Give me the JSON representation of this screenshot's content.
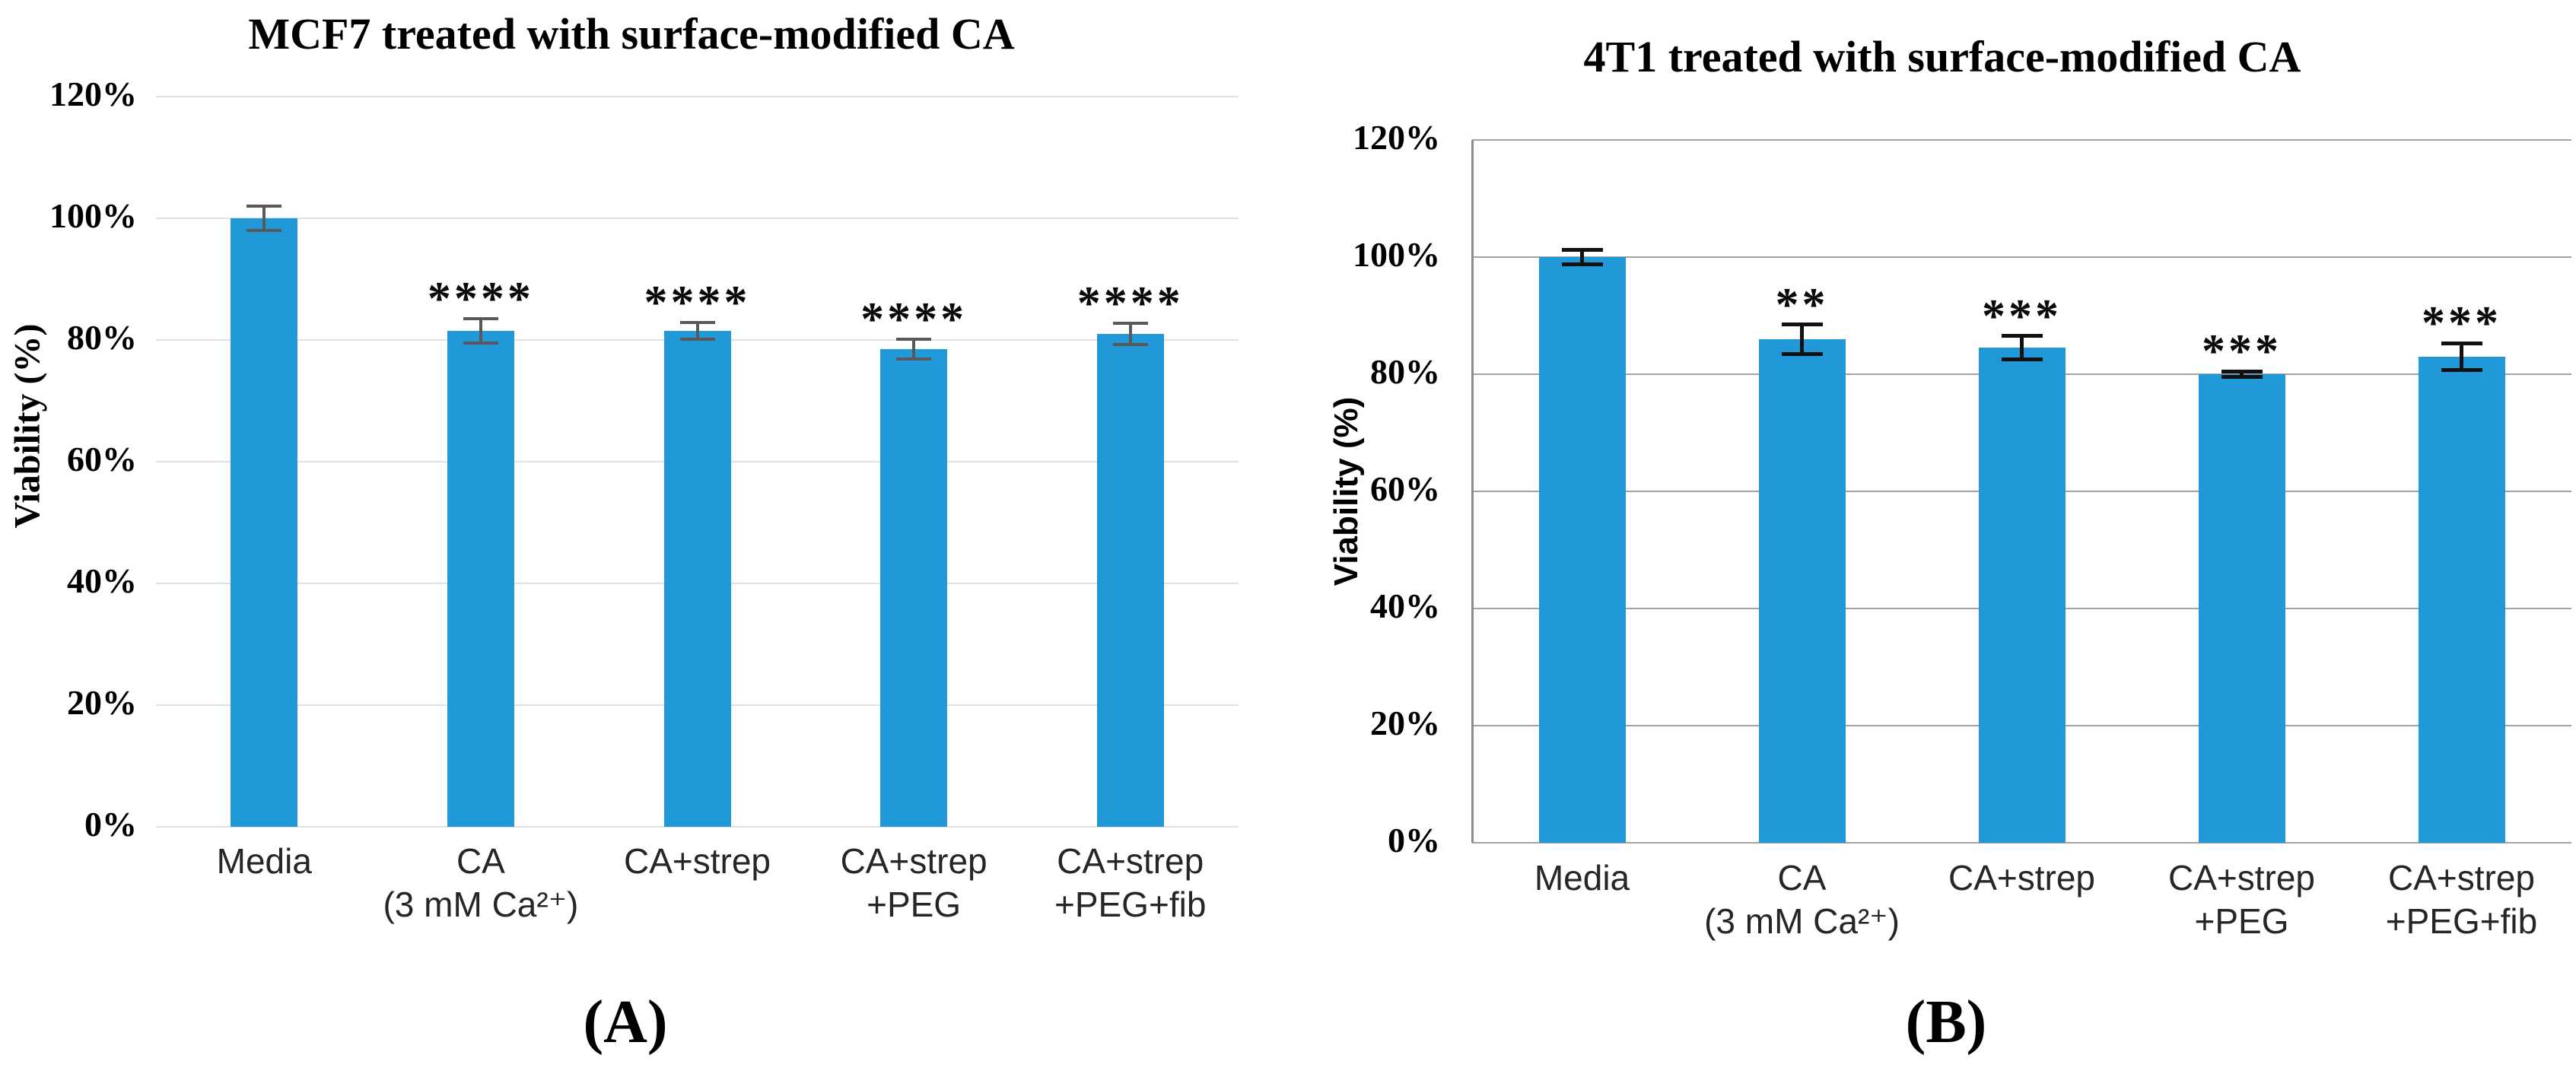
{
  "figure": {
    "background": "#FFFFFF",
    "panels": [
      {
        "caption": "(A)"
      },
      {
        "caption": "(B)"
      }
    ]
  },
  "chart_data": [
    {
      "type": "bar",
      "panel": "A",
      "title": "MCF7 treated with surface-modified CA",
      "xlabel": "",
      "ylabel": "Viability (%)",
      "ylim": [
        0,
        120
      ],
      "ytick_step": 20,
      "ytick_labels": [
        "0%",
        "20%",
        "40%",
        "60%",
        "80%",
        "100%",
        "120%"
      ],
      "grid": true,
      "legend": false,
      "categories": [
        [
          "Media"
        ],
        [
          "CA",
          "(3 mM Ca²⁺)"
        ],
        [
          "CA+strep"
        ],
        [
          "CA+strep",
          "+PEG"
        ],
        [
          "CA+strep",
          "+PEG+fib"
        ]
      ],
      "values": [
        100,
        81.5,
        81.5,
        78.5,
        81
      ],
      "errors": [
        2.0,
        2.0,
        1.4,
        1.6,
        1.8
      ],
      "significance": [
        "",
        "****",
        "****",
        "****",
        "****"
      ],
      "colors": {
        "bar": "#2199D8",
        "grid": "#E0E0E0",
        "error": "#595959",
        "axis_line": null,
        "text": "#000000",
        "xtick_text": "#262626"
      }
    },
    {
      "type": "bar",
      "panel": "B",
      "title": "4T1 treated with surface-modified CA",
      "xlabel": "",
      "ylabel": "Viability (%)",
      "ylim": [
        0,
        120
      ],
      "ytick_step": 20,
      "ytick_labels": [
        "0%",
        "20%",
        "40%",
        "60%",
        "80%",
        "100%",
        "120%"
      ],
      "grid": true,
      "legend": false,
      "categories": [
        [
          "Media"
        ],
        [
          "CA",
          "(3 mM Ca²⁺)"
        ],
        [
          "CA+strep"
        ],
        [
          "CA+strep",
          "+PEG"
        ],
        [
          "CA+strep",
          "+PEG+fib"
        ]
      ],
      "values": [
        100,
        86,
        84.5,
        80,
        83
      ],
      "errors": [
        1.2,
        2.5,
        2.0,
        0.5,
        2.3
      ],
      "significance": [
        "",
        "**",
        "***",
        "***",
        "***"
      ],
      "colors": {
        "bar": "#2199D8",
        "grid": "#A3A3A3",
        "error": "#111111",
        "axis_line": "#8C8C8C",
        "text": "#000000",
        "xtick_text": "#262626"
      }
    }
  ]
}
